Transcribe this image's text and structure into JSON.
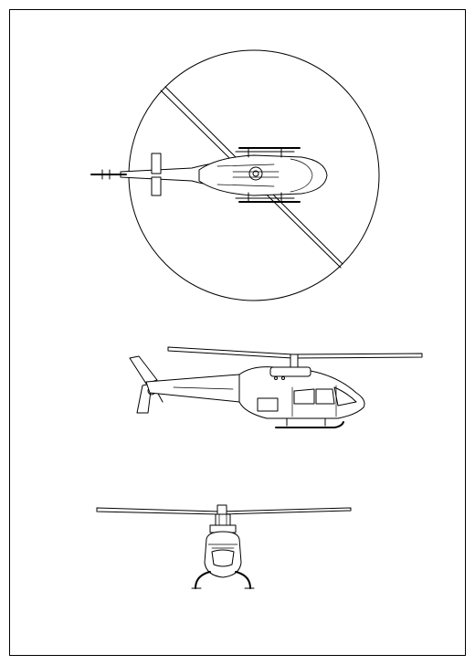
{
  "drawing": {
    "views": [
      "top-view",
      "side-view",
      "front-view"
    ],
    "colors": {
      "line": "#000000",
      "paper": "#ffffff"
    }
  }
}
